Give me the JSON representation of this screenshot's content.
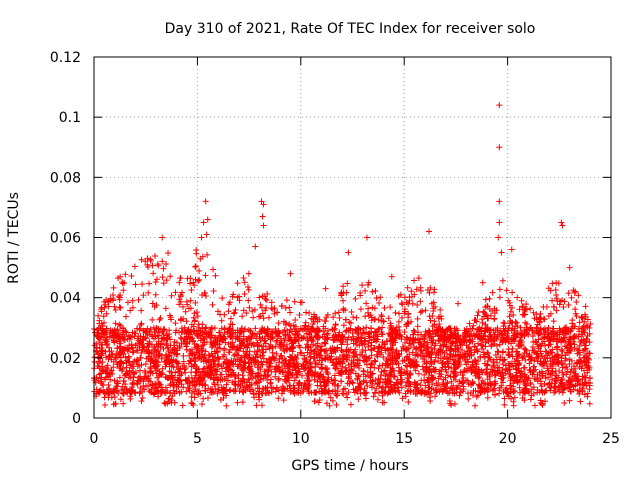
{
  "chart_data": {
    "type": "scatter",
    "title": "Day 310 of 2021, Rate Of TEC Index for receiver solo",
    "xlabel": "GPS time / hours",
    "ylabel": "ROTI / TECUs",
    "xlim": [
      0,
      25
    ],
    "ylim": [
      0,
      0.12
    ],
    "xticks": [
      0,
      5,
      10,
      15,
      20,
      25
    ],
    "xtick_labels": [
      "0",
      "5",
      "10",
      "15",
      "20",
      "25"
    ],
    "yticks": [
      0,
      0.02,
      0.04,
      0.06,
      0.08,
      0.1,
      0.12
    ],
    "ytick_labels": [
      "0",
      "0.02",
      "0.04",
      "0.06",
      "0.08",
      "0.1",
      "0.12"
    ],
    "grid": true,
    "marker": "plus",
    "color": "#ff0000",
    "x_extent": [
      0,
      24
    ],
    "typical_range": [
      0.008,
      0.03
    ],
    "envelope": {
      "x": [
        0,
        0.5,
        1,
        1.5,
        2,
        2.5,
        3,
        3.5,
        4,
        4.5,
        5,
        5.5,
        6,
        6.5,
        7,
        7.5,
        8,
        8.5,
        9,
        9.5,
        10,
        10.5,
        11,
        11.5,
        12,
        12.5,
        13,
        13.5,
        14,
        14.5,
        15,
        15.5,
        16,
        16.5,
        17,
        17.5,
        18,
        18.5,
        19,
        19.5,
        20,
        20.5,
        21,
        21.5,
        22,
        22.5,
        23,
        23.5,
        24
      ],
      "upper": [
        0.032,
        0.039,
        0.045,
        0.05,
        0.052,
        0.053,
        0.055,
        0.058,
        0.05,
        0.048,
        0.058,
        0.055,
        0.045,
        0.042,
        0.048,
        0.05,
        0.045,
        0.04,
        0.038,
        0.04,
        0.04,
        0.035,
        0.033,
        0.036,
        0.045,
        0.05,
        0.048,
        0.044,
        0.042,
        0.04,
        0.042,
        0.048,
        0.046,
        0.043,
        0.03,
        0.028,
        0.03,
        0.035,
        0.04,
        0.048,
        0.045,
        0.04,
        0.038,
        0.035,
        0.045,
        0.046,
        0.045,
        0.04,
        0.035
      ]
    },
    "outliers": [
      {
        "x": 19.6,
        "y": 0.104
      },
      {
        "x": 19.6,
        "y": 0.09
      },
      {
        "x": 19.6,
        "y": 0.072
      },
      {
        "x": 19.6,
        "y": 0.065
      },
      {
        "x": 19.55,
        "y": 0.06
      },
      {
        "x": 19.7,
        "y": 0.055
      },
      {
        "x": 5.4,
        "y": 0.072
      },
      {
        "x": 5.5,
        "y": 0.066
      },
      {
        "x": 5.3,
        "y": 0.065
      },
      {
        "x": 5.45,
        "y": 0.061
      },
      {
        "x": 5.2,
        "y": 0.06
      },
      {
        "x": 8.1,
        "y": 0.072
      },
      {
        "x": 8.2,
        "y": 0.071
      },
      {
        "x": 8.15,
        "y": 0.067
      },
      {
        "x": 8.2,
        "y": 0.064
      },
      {
        "x": 7.8,
        "y": 0.057
      },
      {
        "x": 22.6,
        "y": 0.065
      },
      {
        "x": 22.65,
        "y": 0.064
      },
      {
        "x": 16.2,
        "y": 0.062
      },
      {
        "x": 13.2,
        "y": 0.06
      },
      {
        "x": 3.3,
        "y": 0.06
      },
      {
        "x": 20.2,
        "y": 0.056
      },
      {
        "x": 12.3,
        "y": 0.055
      },
      {
        "x": 23.0,
        "y": 0.05
      },
      {
        "x": 9.5,
        "y": 0.048
      },
      {
        "x": 14.4,
        "y": 0.047
      },
      {
        "x": 17.6,
        "y": 0.038
      },
      {
        "x": 18.8,
        "y": 0.045
      },
      {
        "x": 11.2,
        "y": 0.043
      }
    ]
  }
}
